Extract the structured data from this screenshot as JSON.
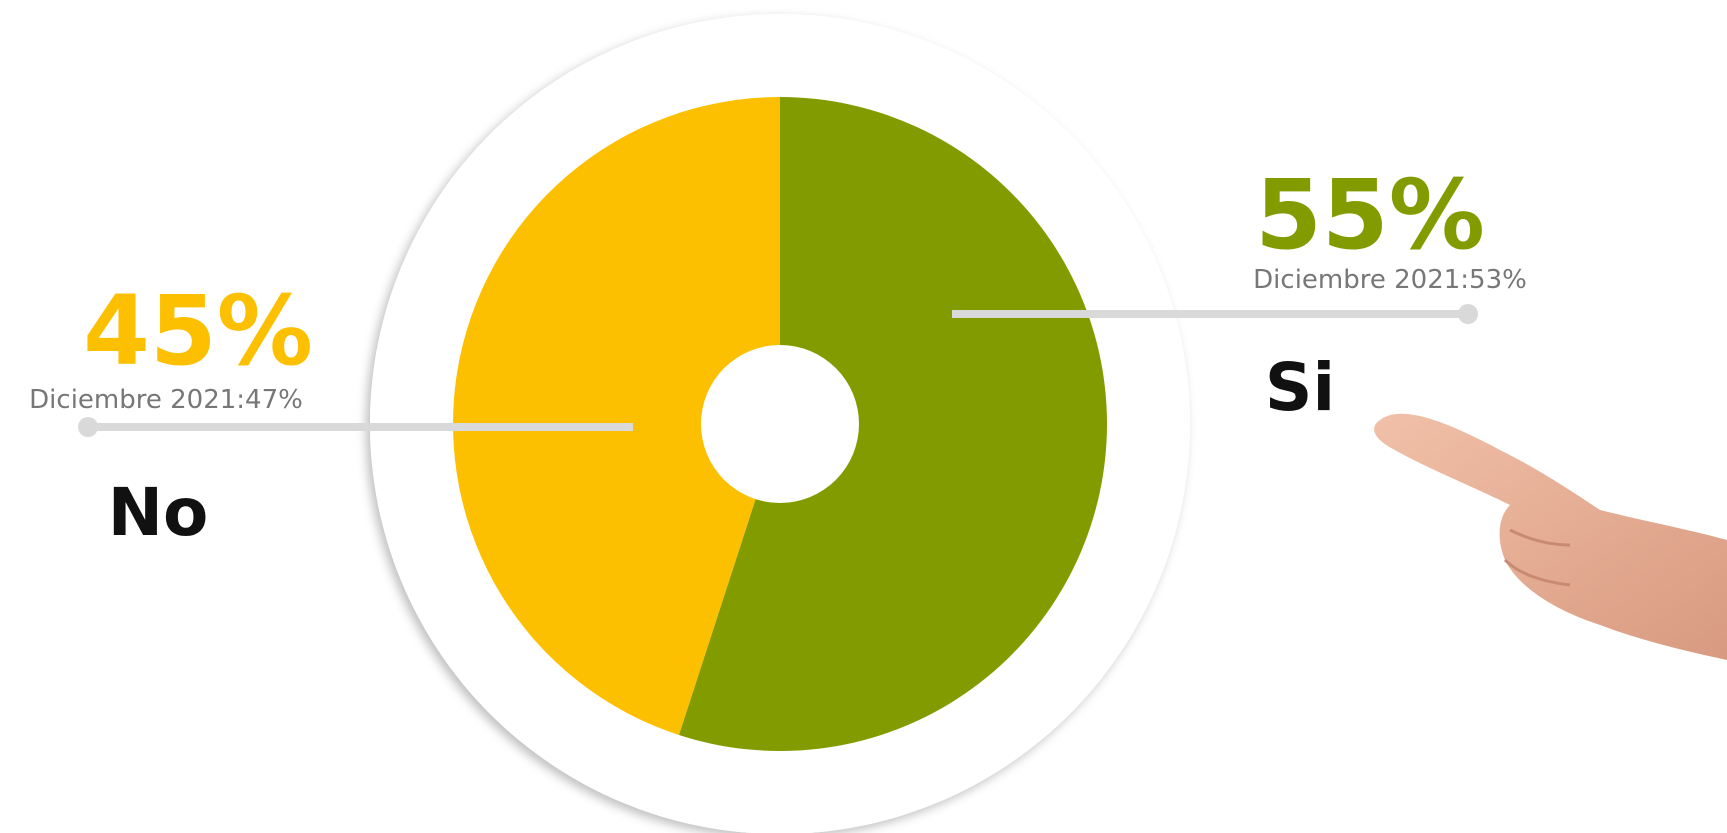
{
  "chart_data": {
    "type": "pie",
    "donut": true,
    "categories": [
      "Si",
      "No"
    ],
    "values": [
      55,
      45
    ],
    "value_labels": [
      "55%",
      "45%"
    ],
    "colors": [
      "#829c00",
      "#fcc000"
    ],
    "annotations": [
      "Diciembre 2021:53%",
      "Diciembre 2021:47%"
    ]
  }
}
